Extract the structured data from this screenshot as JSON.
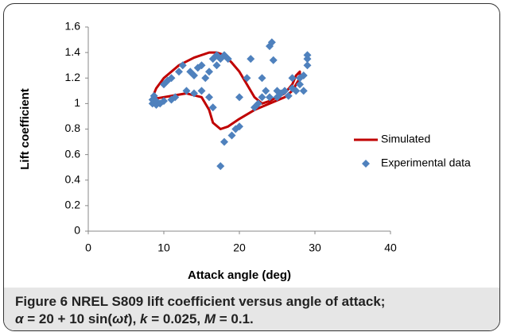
{
  "chart_data": {
    "type": "combo",
    "xlabel": "Attack angle (deg)",
    "ylabel": "Lift coefficient",
    "xlim": [
      0,
      40
    ],
    "xticks": [
      0,
      10,
      20,
      30,
      40
    ],
    "ylim": [
      0,
      1.6
    ],
    "yticks": [
      0,
      0.2,
      0.4,
      0.6,
      0.8,
      1,
      1.2,
      1.4,
      1.6
    ],
    "series": [
      {
        "name": "Simulated",
        "type": "line",
        "color": "#c00000",
        "x": [
          8.5,
          9,
          10,
          12,
          14,
          16,
          17,
          18,
          19,
          20,
          21,
          22,
          23,
          24,
          25,
          26,
          27,
          27.5,
          28,
          28,
          27,
          26,
          24,
          22,
          20,
          18.5,
          17.5,
          16.5,
          16,
          15,
          13,
          11,
          9,
          8.5
        ],
        "values": [
          1.05,
          1.12,
          1.2,
          1.3,
          1.36,
          1.4,
          1.4,
          1.38,
          1.32,
          1.25,
          1.15,
          1.05,
          1.0,
          1.02,
          1.05,
          1.08,
          1.15,
          1.22,
          1.25,
          1.2,
          1.1,
          1.05,
          1.0,
          0.95,
          0.88,
          0.82,
          0.8,
          0.85,
          0.95,
          1.05,
          1.08,
          1.06,
          1.04,
          1.05
        ]
      },
      {
        "name": "Experimental data",
        "type": "scatter",
        "color": "#4f81bd",
        "x": [
          8.5,
          8.5,
          8.7,
          9,
          9,
          9.5,
          10,
          10,
          10.5,
          11,
          11,
          11.5,
          12,
          12.5,
          13,
          13.5,
          14,
          14,
          14.5,
          15,
          15,
          15.5,
          16,
          16,
          16.5,
          16.5,
          17,
          17,
          17.5,
          17.5,
          18,
          18,
          18.5,
          19,
          19.5,
          20,
          20,
          21,
          21.5,
          22,
          22.5,
          23,
          23,
          23.5,
          24,
          24,
          24.3,
          24.5,
          25,
          25,
          25.5,
          26,
          26.5,
          27,
          27,
          27.5,
          28,
          28,
          28.5,
          28.5,
          29,
          29,
          29
        ],
        "values": [
          1.0,
          1.03,
          1.06,
          0.99,
          1.02,
          1.0,
          1.02,
          1.15,
          1.18,
          1.03,
          1.2,
          1.05,
          1.25,
          1.3,
          1.1,
          1.25,
          1.22,
          1.08,
          1.28,
          1.3,
          1.1,
          1.2,
          1.25,
          1.05,
          1.35,
          0.97,
          1.3,
          1.38,
          1.35,
          0.51,
          0.7,
          1.38,
          1.35,
          0.75,
          0.8,
          0.82,
          1.05,
          1.2,
          1.35,
          0.97,
          1.0,
          1.05,
          1.2,
          1.1,
          1.45,
          1.05,
          1.48,
          1.34,
          1.1,
          1.05,
          1.08,
          1.1,
          1.06,
          1.2,
          1.12,
          1.1,
          1.15,
          1.2,
          1.22,
          1.1,
          1.35,
          1.38,
          1.3
        ]
      }
    ]
  },
  "caption": {
    "label": "Figure 6",
    "text": "NREL S809 lift coefficient versus angle of attack;",
    "line2": [
      {
        "text": "α",
        "italic": true
      },
      {
        "text": " = 20 + 10 sin(",
        "italic": false
      },
      {
        "text": "ωt",
        "italic": true
      },
      {
        "text": "), ",
        "italic": false
      },
      {
        "text": "k",
        "italic": true
      },
      {
        "text": " = 0.025, ",
        "italic": false
      },
      {
        "text": "M",
        "italic": true
      },
      {
        "text": " = 0.1.",
        "italic": false
      }
    ]
  }
}
